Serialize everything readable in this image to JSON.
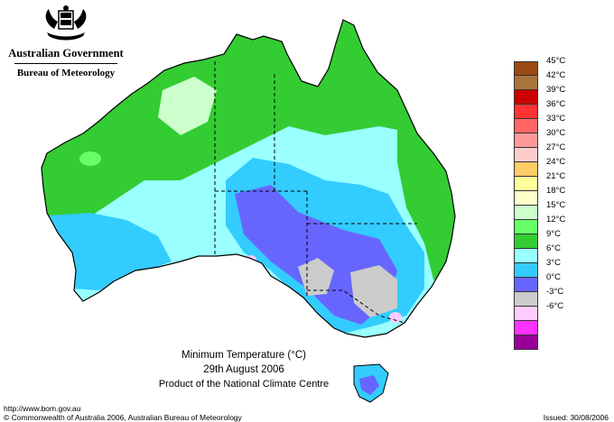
{
  "header": {
    "government": "Australian Government",
    "bureau": "Bureau of Meteorology"
  },
  "map": {
    "title": "Minimum Temperature (°C)",
    "date": "29th August 2006",
    "producer": "Product of the National Climate Centre"
  },
  "footer": {
    "url": "http://www.bom.gov.au",
    "copyright": "© Commonwealth of Australia 2006, Australian Bureau of Meteorology",
    "issued": "Issued: 30/08/2006"
  },
  "legend": {
    "items": [
      {
        "label": "45°C",
        "color": "#9b4a14"
      },
      {
        "label": "42°C",
        "color": "#a8743a"
      },
      {
        "label": "39°C",
        "color": "#cc0000"
      },
      {
        "label": "36°C",
        "color": "#ff3333"
      },
      {
        "label": "33°C",
        "color": "#ff6666"
      },
      {
        "label": "30°C",
        "color": "#ff9999"
      },
      {
        "label": "27°C",
        "color": "#ffcccc"
      },
      {
        "label": "24°C",
        "color": "#ffcc66"
      },
      {
        "label": "21°C",
        "color": "#ffff99"
      },
      {
        "label": "18°C",
        "color": "#ffffcc"
      },
      {
        "label": "15°C",
        "color": "#ccffcc"
      },
      {
        "label": "12°C",
        "color": "#66ff66"
      },
      {
        "label": "9°C",
        "color": "#33cc33"
      },
      {
        "label": "6°C",
        "color": "#99ffff"
      },
      {
        "label": "3°C",
        "color": "#33ccff"
      },
      {
        "label": "0°C",
        "color": "#6666ff"
      },
      {
        "label": "-3°C",
        "color": "#cccccc"
      },
      {
        "label": "-6°C",
        "color": "#ffccff"
      },
      {
        "label": "",
        "color": "#ff33ff"
      },
      {
        "label": "",
        "color": "#990099"
      }
    ]
  }
}
